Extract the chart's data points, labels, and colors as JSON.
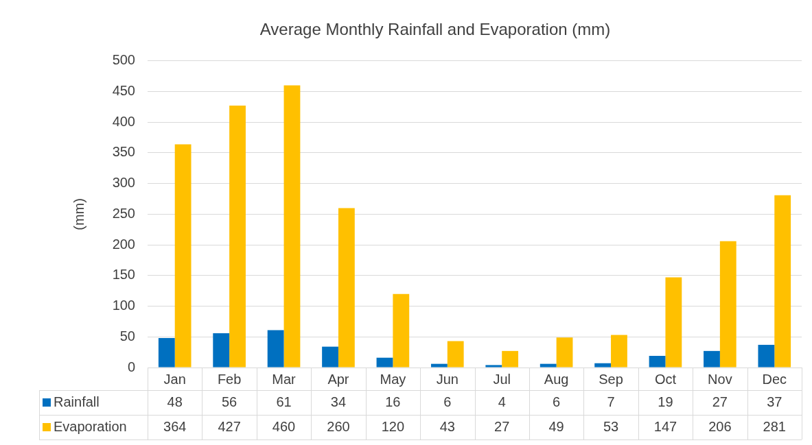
{
  "chart_data": {
    "type": "bar",
    "title": "Average Monthly Rainfall and Evaporation (mm)",
    "ylabel": "(mm)",
    "categories": [
      "Jan",
      "Feb",
      "Mar",
      "Apr",
      "May",
      "Jun",
      "Jul",
      "Aug",
      "Sep",
      "Oct",
      "Nov",
      "Dec"
    ],
    "series": [
      {
        "name": "Rainfall",
        "color": "#0070c0",
        "values": [
          48,
          56,
          61,
          34,
          16,
          6,
          4,
          6,
          7,
          19,
          27,
          37
        ]
      },
      {
        "name": "Evaporation",
        "color": "#ffc000",
        "values": [
          364,
          427,
          460,
          260,
          120,
          43,
          27,
          49,
          53,
          147,
          206,
          281
        ]
      }
    ],
    "ylim": [
      0,
      500
    ],
    "yticks": [
      0,
      50,
      100,
      150,
      200,
      250,
      300,
      350,
      400,
      450,
      500
    ],
    "grid": "y",
    "legend": "bottom",
    "data_labels": true
  }
}
